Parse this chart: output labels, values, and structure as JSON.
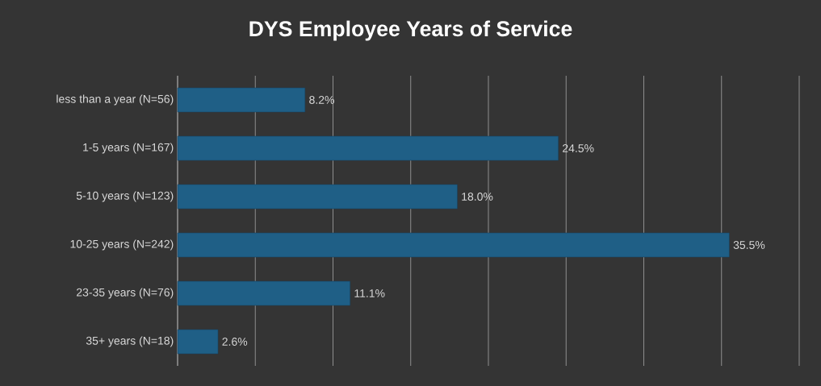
{
  "chart_data": {
    "type": "bar",
    "orientation": "horizontal",
    "title": "DYS Employee Years of Service",
    "categories": [
      "less than a year (N=56)",
      "1-5 years (N=167)",
      "5-10 years (N=123)",
      "10-25 years (N=242)",
      "23-35 years (N=76)",
      "35+ years (N=18)"
    ],
    "values": [
      8.2,
      24.5,
      18.0,
      35.5,
      11.1,
      2.6
    ],
    "value_labels": [
      "8.2%",
      "24.5%",
      "18.0%",
      "35.5%",
      "11.1%",
      "2.6%"
    ],
    "color": "#1f5f86",
    "xlim": [
      0,
      40
    ],
    "xticks": [
      {
        "value": 0,
        "label": null
      },
      {
        "value": 5,
        "label": null
      },
      {
        "value": 10,
        "label": null
      },
      {
        "value": 15,
        "label": null
      },
      {
        "value": 20,
        "label": null
      },
      {
        "value": 25,
        "label": null
      },
      {
        "value": 30,
        "label": null
      },
      {
        "value": 35,
        "label": null
      },
      {
        "value": 40,
        "label": null
      }
    ],
    "tick_labels": "y",
    "grid": "x"
  }
}
